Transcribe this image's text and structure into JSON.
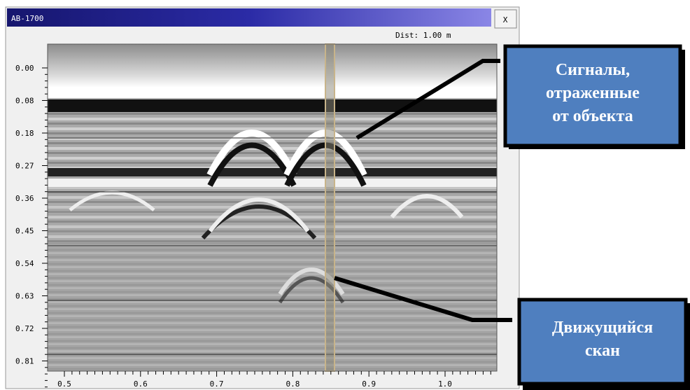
{
  "window": {
    "title": "AB-1700",
    "close_button": "X",
    "status": "Dist: 1.00 m"
  },
  "radargram": {
    "depth_labels": [
      "0.00",
      "0.08",
      "0.18",
      "0.27",
      "0.36",
      "0.45",
      "0.54",
      "0.63",
      "0.72",
      "0.81"
    ],
    "distance_labels": [
      "0.5",
      "0.6",
      "0.7",
      "0.8",
      "0.9",
      "1.0"
    ]
  },
  "callouts": [
    {
      "lines": [
        "Сигналы,",
        "отраженные",
        "от объекта"
      ]
    },
    {
      "lines": [
        "Движущийся",
        "скан"
      ]
    }
  ]
}
